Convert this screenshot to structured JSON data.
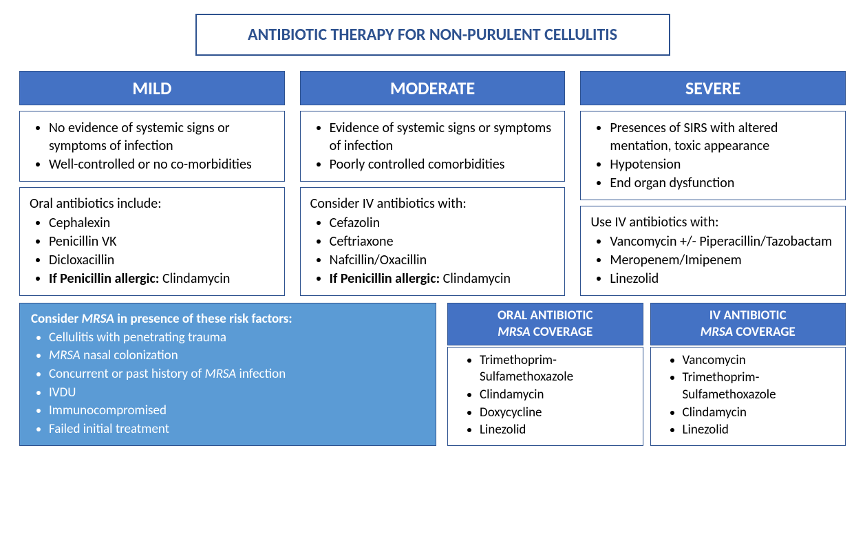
{
  "title": "ANTIBIOTIC THERAPY FOR NON-PURULENT CELLULITIS",
  "severity": {
    "mild": {
      "header": "MILD",
      "criteria": [
        "No evidence of systemic signs or symptoms of infection",
        "Well-controlled or no co-morbidities"
      ],
      "tx_lead": "Oral antibiotics include:",
      "tx_items": [
        "Cephalexin",
        "Penicillin VK",
        "Dicloxacillin"
      ],
      "tx_allergy_label": "If Penicillin allergic:",
      "tx_allergy_drug": "Clindamycin"
    },
    "moderate": {
      "header": "MODERATE",
      "criteria": [
        "Evidence of systemic signs or symptoms of infection",
        "Poorly controlled comorbidities"
      ],
      "tx_lead": "Consider IV antibiotics with:",
      "tx_items": [
        "Cefazolin",
        "Ceftriaxone",
        "Nafcillin/Oxacillin"
      ],
      "tx_allergy_label": "If Penicillin allergic:",
      "tx_allergy_drug": "Clindamycin"
    },
    "severe": {
      "header": "SEVERE",
      "criteria": [
        "Presences of SIRS with altered mentation, toxic appearance",
        "Hypotension",
        "End organ dysfunction"
      ],
      "tx_lead": "Use IV antibiotics with:",
      "tx_items": [
        "Vancomycin +/- Piperacillin/Tazobactam",
        "Meropenem/Imipenem",
        "Linezolid"
      ]
    }
  },
  "mrsa_risk": {
    "lead_pre": "Consider ",
    "lead_em": "MRSA",
    "lead_post": " in presence of these risk factors",
    "items_pre": [
      "Cellulitis with penetrating trauma"
    ],
    "item_em1_pre": "",
    "item_em1_em": "MRSA",
    "item_em1_post": " nasal colonization",
    "item_em2_pre": "Concurrent or past history of ",
    "item_em2_em": "MRSA",
    "item_em2_post": " infection",
    "items_post": [
      "IVDU",
      "Immunocompromised",
      "Failed initial treatment"
    ]
  },
  "mrsa_oral": {
    "header_l1": "ORAL ANTIBIOTIC",
    "header_em": "MRSA",
    "header_l2": " COVERAGE",
    "items": [
      "Trimethoprim-Sulfamethoxazole",
      "Clindamycin",
      "Doxycycline",
      "Linezolid"
    ]
  },
  "mrsa_iv": {
    "header_l1": "IV ANTIBIOTIC",
    "header_em": "MRSA",
    "header_l2": " COVERAGE",
    "items": [
      "Vancomycin",
      "Trimethoprim-Sulfamethoxazole",
      "Clindamycin",
      "Linezolid"
    ]
  },
  "colors": {
    "header_bg": "#4472c4",
    "border": "#2e528f",
    "title_text": "#2e528f",
    "mrsa_risk_bg": "#5b9bd5",
    "text": "#000000",
    "white": "#ffffff"
  },
  "type": "infographic",
  "fonts": {
    "title": 24,
    "header": 26,
    "body": 20,
    "mrsa": 19
  }
}
